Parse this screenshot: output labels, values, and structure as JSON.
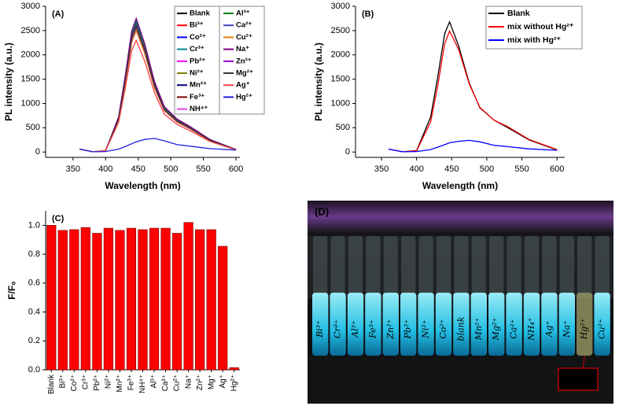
{
  "chart_data": [
    {
      "type": "line",
      "title": "(A)",
      "xlabel": "Wavelength (nm)",
      "ylabel": "PL intensity (a.u.)",
      "x": [
        360,
        380,
        400,
        420,
        430,
        440,
        447,
        460,
        475,
        490,
        510,
        530,
        560,
        600
      ],
      "xlim": [
        308,
        606
      ],
      "xticks": [
        350,
        400,
        450,
        500,
        550,
        600
      ],
      "ylim": [
        -110,
        3000
      ],
      "yticks": [
        0,
        500,
        1000,
        1500,
        2000,
        2500,
        3000
      ],
      "series": [
        {
          "name": "Blank",
          "color": "#000000",
          "values": [
            60,
            5,
            30,
            700,
            1500,
            2400,
            2650,
            2150,
            1400,
            900,
            650,
            500,
            250,
            50
          ]
        },
        {
          "name": "Bi³⁺",
          "color": "#ff0000",
          "values": [
            60,
            5,
            30,
            690,
            1480,
            2370,
            2620,
            2130,
            1380,
            890,
            640,
            490,
            250,
            50
          ]
        },
        {
          "name": "Co²⁺",
          "color": "#0000ff",
          "values": [
            60,
            5,
            30,
            690,
            1470,
            2350,
            2600,
            2110,
            1370,
            880,
            640,
            490,
            245,
            50
          ]
        },
        {
          "name": "Cr³⁺",
          "color": "#008b8b",
          "values": [
            60,
            5,
            30,
            710,
            1530,
            2450,
            2700,
            2190,
            1430,
            920,
            660,
            510,
            255,
            50
          ]
        },
        {
          "name": "Pb²⁺",
          "color": "#ff00ff",
          "values": [
            60,
            5,
            30,
            660,
            1410,
            2260,
            2500,
            2030,
            1320,
            850,
            610,
            470,
            235,
            45
          ]
        },
        {
          "name": "Ni²⁺",
          "color": "#808000",
          "values": [
            60,
            5,
            30,
            695,
            1490,
            2380,
            2620,
            2120,
            1390,
            880,
            630,
            480,
            240,
            45
          ]
        },
        {
          "name": "Mn²⁺",
          "color": "#000080",
          "values": [
            60,
            5,
            30,
            680,
            1450,
            2320,
            2560,
            2080,
            1360,
            870,
            630,
            485,
            240,
            50
          ]
        },
        {
          "name": "Fe³⁺",
          "color": "#800000",
          "values": [
            60,
            5,
            30,
            685,
            1465,
            2345,
            2600,
            2115,
            1375,
            885,
            645,
            495,
            250,
            50
          ]
        },
        {
          "name": "NH⁴⁺",
          "color": "#e040e0",
          "values": [
            60,
            5,
            30,
            675,
            1445,
            2315,
            2560,
            2075,
            1350,
            860,
            620,
            475,
            235,
            45
          ]
        },
        {
          "name": "Al³⁺",
          "color": "#008000",
          "values": [
            60,
            5,
            30,
            700,
            1490,
            2375,
            2620,
            2125,
            1385,
            890,
            645,
            495,
            248,
            50
          ]
        },
        {
          "name": "Ca²⁺",
          "color": "#4040c0",
          "values": [
            60,
            5,
            30,
            690,
            1475,
            2355,
            2600,
            2105,
            1365,
            875,
            635,
            485,
            242,
            48
          ]
        },
        {
          "name": "Cu²⁺",
          "color": "#e08000",
          "values": [
            60,
            5,
            30,
            665,
            1415,
            2265,
            2500,
            2035,
            1325,
            855,
            615,
            475,
            238,
            46
          ]
        },
        {
          "name": "Na⁺",
          "color": "#800080",
          "values": [
            60,
            5,
            30,
            725,
            1555,
            2490,
            2750,
            2230,
            1455,
            935,
            675,
            520,
            260,
            52
          ]
        },
        {
          "name": "Zn²⁺",
          "color": "#9900cc",
          "values": [
            60,
            5,
            30,
            688,
            1470,
            2350,
            2600,
            2110,
            1372,
            882,
            640,
            492,
            246,
            49
          ]
        },
        {
          "name": "Mg²⁺",
          "color": "#333333",
          "values": [
            60,
            5,
            30,
            682,
            1460,
            2335,
            2580,
            2095,
            1360,
            875,
            632,
            488,
            244,
            48
          ]
        },
        {
          "name": "Ag⁺",
          "color": "#ff4040",
          "values": [
            60,
            5,
            30,
            610,
            1300,
            2090,
            2300,
            1870,
            1220,
            780,
            565,
            435,
            218,
            44
          ]
        },
        {
          "name": "Hg²⁺",
          "color": "#2020e0",
          "values": [
            60,
            5,
            10,
            60,
            110,
            170,
            210,
            260,
            280,
            230,
            150,
            120,
            70,
            40
          ]
        }
      ]
    },
    {
      "type": "line",
      "title": "(B)",
      "xlabel": "Wavelength (nm)",
      "ylabel": "PL intensity (a.u.)",
      "x": [
        360,
        380,
        400,
        420,
        430,
        440,
        447,
        460,
        475,
        490,
        510,
        530,
        560,
        600
      ],
      "xlim": [
        313,
        611
      ],
      "xticks": [
        350,
        400,
        450,
        500,
        550,
        600
      ],
      "ylim": [
        -110,
        3000
      ],
      "yticks": [
        0,
        500,
        1000,
        1500,
        2000,
        2500,
        3000
      ],
      "series": [
        {
          "name": "Blank",
          "color": "#000000",
          "values": [
            60,
            5,
            30,
            720,
            1530,
            2440,
            2680,
            2180,
            1420,
            910,
            660,
            500,
            250,
            40
          ]
        },
        {
          "name": "mix without Hg²⁺",
          "color": "#ff0000",
          "values": [
            60,
            5,
            25,
            620,
            1350,
            2230,
            2490,
            2110,
            1400,
            920,
            660,
            520,
            260,
            50
          ]
        },
        {
          "name": "mix with Hg²⁺",
          "color": "#0000ff",
          "values": [
            60,
            5,
            10,
            50,
            100,
            150,
            190,
            220,
            240,
            210,
            140,
            110,
            65,
            35
          ]
        }
      ]
    },
    {
      "type": "bar",
      "title": "(C)",
      "ylabel": "F/F₀",
      "color": "#ff0000",
      "categories": [
        "Blank",
        "Bi³⁺",
        "Co²⁺",
        "Cr³⁺",
        "Pb²⁺",
        "Ni²⁺",
        "Mn²⁺",
        "Fe³⁺",
        "NH⁴⁺",
        "Al³⁺",
        "Ca²⁺",
        "Cu²⁺",
        "Na⁺",
        "Zn²⁺",
        "Mg⁺",
        "Ag⁺",
        "Hg²⁺"
      ],
      "values": [
        1.0,
        0.965,
        0.97,
        0.985,
        0.945,
        0.98,
        0.965,
        0.98,
        0.97,
        0.98,
        0.98,
        0.945,
        1.02,
        0.97,
        0.97,
        0.855,
        0.015
      ],
      "ylim": [
        0,
        1.1
      ],
      "yticks": [
        {
          "value": 0,
          "label": "0.0"
        },
        {
          "value": 0.2,
          "label": "0.2"
        },
        {
          "value": 0.4,
          "label": "0.4"
        },
        {
          "value": 0.6,
          "label": "0.6"
        },
        {
          "value": 0.8,
          "label": "0.8"
        },
        {
          "value": 1,
          "label": "1.0"
        }
      ]
    }
  ],
  "photo": {
    "label": "(D)",
    "callout": "Hg²⁺",
    "vial_labels": [
      "Bi³⁺",
      "Cr³⁺",
      "Al³⁺",
      "Fe³⁺",
      "Zn²⁺",
      "Pb²⁺",
      "Ni²⁺",
      "Co²⁺",
      "blank",
      "Mn²⁺",
      "Mg²⁺",
      "Ca²⁺",
      "NH₄⁺",
      "Ag⁺",
      "Na⁺",
      "Hg²⁺",
      "Cu²⁺"
    ]
  }
}
